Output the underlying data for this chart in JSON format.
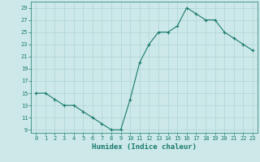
{
  "x": [
    0,
    1,
    2,
    3,
    4,
    5,
    6,
    7,
    8,
    9,
    10,
    11,
    12,
    13,
    14,
    15,
    16,
    17,
    18,
    19,
    20,
    21,
    22,
    23
  ],
  "y": [
    15,
    15,
    14,
    13,
    13,
    12,
    11,
    10,
    9,
    9,
    14,
    20,
    23,
    25,
    25,
    26,
    29,
    28,
    27,
    27,
    25,
    24,
    23,
    22
  ],
  "line_color": "#1a7a6e",
  "marker": "+",
  "marker_size": 3,
  "marker_linewidth": 0.8,
  "bg_color": "#cce8e8",
  "grid_color": "#afd4d4",
  "xlabel": "Humidex (Indice chaleur)",
  "ylabel": "",
  "xlim": [
    -0.5,
    23.5
  ],
  "ylim": [
    8.5,
    30
  ],
  "yticks": [
    9,
    11,
    13,
    15,
    17,
    19,
    21,
    23,
    25,
    27,
    29
  ],
  "xticks": [
    0,
    1,
    2,
    3,
    4,
    5,
    6,
    7,
    8,
    9,
    10,
    11,
    12,
    13,
    14,
    15,
    16,
    17,
    18,
    19,
    20,
    21,
    22,
    23
  ],
  "tick_label_fontsize": 5.0,
  "xlabel_fontsize": 6.5,
  "tick_color": "#1a7a6e",
  "line_width": 0.8
}
